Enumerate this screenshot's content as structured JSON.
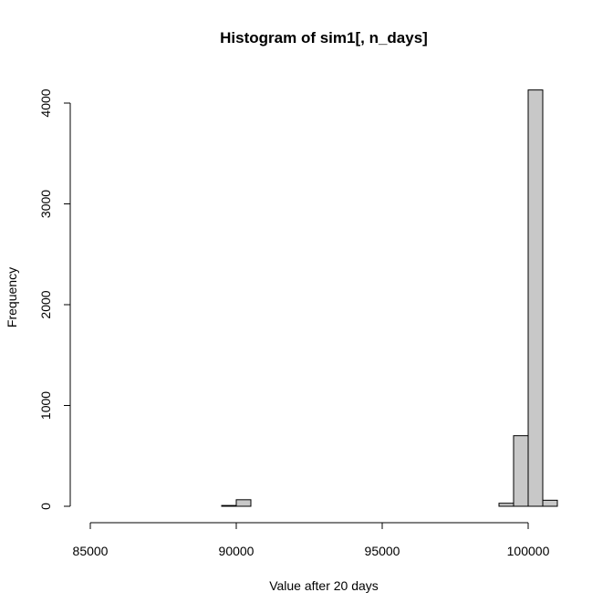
{
  "chart_data": {
    "type": "bar",
    "title": "Histogram of sim1[, n_days]",
    "xlabel": "Value after 20 days",
    "ylabel": "Frequency",
    "xlim": [
      85000,
      101000
    ],
    "ylim": [
      0,
      4000
    ],
    "x_ticks": [
      "85000",
      "90000",
      "95000",
      "100000"
    ],
    "y_ticks": [
      "0",
      "1000",
      "2000",
      "3000",
      "4000"
    ],
    "bin_width": 500,
    "bins": [
      {
        "x0": 85000,
        "x1": 85500,
        "count": 0
      },
      {
        "x0": 85500,
        "x1": 86000,
        "count": 0
      },
      {
        "x0": 86000,
        "x1": 86500,
        "count": 0
      },
      {
        "x0": 86500,
        "x1": 87000,
        "count": 0
      },
      {
        "x0": 87000,
        "x1": 87500,
        "count": 0
      },
      {
        "x0": 87500,
        "x1": 88000,
        "count": 0
      },
      {
        "x0": 88000,
        "x1": 88500,
        "count": 0
      },
      {
        "x0": 88500,
        "x1": 89000,
        "count": 0
      },
      {
        "x0": 89000,
        "x1": 89500,
        "count": 0
      },
      {
        "x0": 89500,
        "x1": 90000,
        "count": 8
      },
      {
        "x0": 90000,
        "x1": 90500,
        "count": 65
      },
      {
        "x0": 90500,
        "x1": 91000,
        "count": 0
      },
      {
        "x0": 91000,
        "x1": 91500,
        "count": 0
      },
      {
        "x0": 91500,
        "x1": 92000,
        "count": 0
      },
      {
        "x0": 92000,
        "x1": 92500,
        "count": 0
      },
      {
        "x0": 92500,
        "x1": 93000,
        "count": 0
      },
      {
        "x0": 93000,
        "x1": 93500,
        "count": 0
      },
      {
        "x0": 93500,
        "x1": 94000,
        "count": 0
      },
      {
        "x0": 94000,
        "x1": 94500,
        "count": 0
      },
      {
        "x0": 94500,
        "x1": 95000,
        "count": 0
      },
      {
        "x0": 95000,
        "x1": 95500,
        "count": 0
      },
      {
        "x0": 95500,
        "x1": 96000,
        "count": 0
      },
      {
        "x0": 96000,
        "x1": 96500,
        "count": 0
      },
      {
        "x0": 96500,
        "x1": 97000,
        "count": 0
      },
      {
        "x0": 97000,
        "x1": 97500,
        "count": 0
      },
      {
        "x0": 97500,
        "x1": 98000,
        "count": 0
      },
      {
        "x0": 98000,
        "x1": 98500,
        "count": 0
      },
      {
        "x0": 98500,
        "x1": 99000,
        "count": 0
      },
      {
        "x0": 99000,
        "x1": 99500,
        "count": 30
      },
      {
        "x0": 99500,
        "x1": 100000,
        "count": 700
      },
      {
        "x0": 100000,
        "x1": 100500,
        "count": 4130
      },
      {
        "x0": 100500,
        "x1": 101000,
        "count": 60
      }
    ],
    "bar_fill": "#c8c8c8",
    "bar_stroke": "#000000",
    "grid": false,
    "legend": "none"
  }
}
